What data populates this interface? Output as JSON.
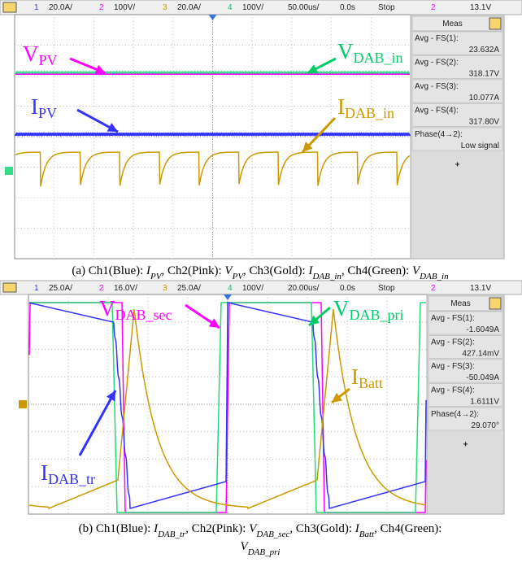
{
  "panels": [
    {
      "toolbar": [
        "1",
        "20.0A/",
        "2",
        "100V/",
        "3",
        "20.0A/",
        "4",
        "100V/",
        "50.00us/",
        "0.0s",
        "Stop",
        "2",
        "13.1V"
      ],
      "meas": {
        "title": "Meas",
        "items": [
          {
            "label": "Avg - FS(1):",
            "value": "23.632A"
          },
          {
            "label": "Avg - FS(2):",
            "value": "318.17V"
          },
          {
            "label": "Avg - FS(3):",
            "value": "10.077A"
          },
          {
            "label": "Avg - FS(4):",
            "value": "317.80V"
          },
          {
            "label": "Phase(4→2):",
            "value": "Low signal"
          }
        ],
        "add": "+"
      },
      "annotations": [
        {
          "main": "V",
          "sub": "PV"
        },
        {
          "main": "V",
          "sub": "DAB_in"
        },
        {
          "main": "I",
          "sub": "PV"
        },
        {
          "main": "I",
          "sub": "DAB_in"
        }
      ],
      "caption": [
        [
          {
            "text": "(a) Ch1(Blue): ",
            "style": "normal"
          },
          {
            "text": "I",
            "style": "italic"
          },
          {
            "text": "PV",
            "style": "sub"
          },
          {
            "text": ", Ch2(Pink): ",
            "style": "normal"
          },
          {
            "text": "V",
            "style": "italic"
          },
          {
            "text": "PV",
            "style": "sub"
          },
          {
            "text": ", Ch3(Gold): ",
            "style": "normal"
          },
          {
            "text": "I",
            "style": "italic"
          },
          {
            "text": "DAB_in",
            "style": "sub"
          },
          {
            "text": ", Ch4(Green): ",
            "style": "normal"
          },
          {
            "text": "V",
            "style": "italic"
          },
          {
            "text": "DAB_in",
            "style": "sub"
          }
        ]
      ]
    },
    {
      "toolbar": [
        "1",
        "25.0A/",
        "2",
        "16.0V/",
        "3",
        "25.0A/",
        "4",
        "100V/",
        "20.00us/",
        "0.0s",
        "Stop",
        "2",
        "13.1V"
      ],
      "meas": {
        "title": "Meas",
        "items": [
          {
            "label": "Avg - FS(1):",
            "value": "-1.6049A"
          },
          {
            "label": "Avg - FS(2):",
            "value": "427.14mV"
          },
          {
            "label": "Avg - FS(3):",
            "value": "-50.049A"
          },
          {
            "label": "Avg - FS(4):",
            "value": "1.6111V"
          },
          {
            "label": "Phase(4→2):",
            "value": "29.070°"
          }
        ],
        "add": "+"
      },
      "annotations": [
        {
          "main": "V",
          "sub": "DAB_sec"
        },
        {
          "main": "V",
          "sub": "DAB_pri"
        },
        {
          "main": "I",
          "sub": "Batt"
        },
        {
          "main": "I",
          "sub": "DAB_tr"
        }
      ],
      "caption": [
        [
          {
            "text": "(b) Ch1(Blue): ",
            "style": "normal"
          },
          {
            "text": "I",
            "style": "italic"
          },
          {
            "text": "DAB_tr",
            "style": "sub"
          },
          {
            "text": ", Ch2(Pink): ",
            "style": "normal"
          },
          {
            "text": "V",
            "style": "italic"
          },
          {
            "text": "DAB_sec",
            "style": "sub"
          },
          {
            "text": ", Ch3(Gold): ",
            "style": "normal"
          },
          {
            "text": "I",
            "style": "italic"
          },
          {
            "text": "Batt",
            "style": "sub"
          },
          {
            "text": ", Ch4(Green):",
            "style": "normal"
          }
        ],
        [
          {
            "text": "V",
            "style": "italic"
          },
          {
            "text": "DAB_pri",
            "style": "sub"
          }
        ]
      ]
    }
  ]
}
